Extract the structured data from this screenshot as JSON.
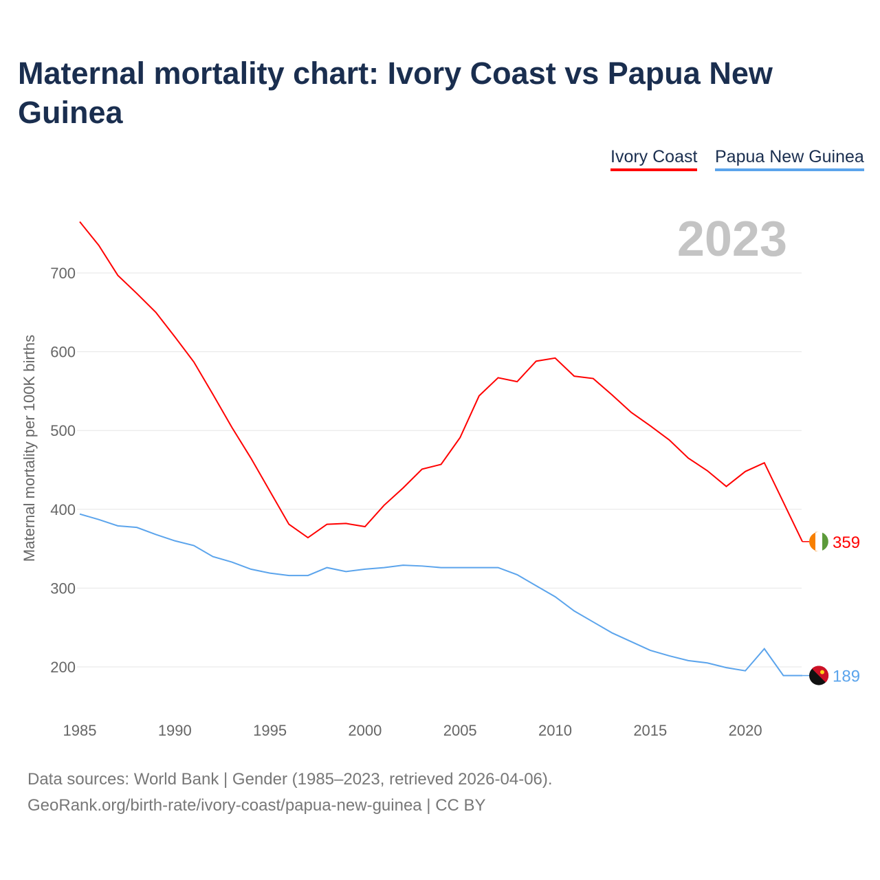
{
  "title": "Maternal mortality chart: Ivory Coast vs Papua New Guinea",
  "year_label": "2023",
  "footer": {
    "line1": "Data sources: World Bank | Gender (1985–2023, retrieved 2026-04-06).",
    "line2": "GeoRank.org/birth-rate/ivory-coast/papua-new-guinea | CC BY"
  },
  "chart_data": {
    "type": "line",
    "title": "Maternal mortality chart: Ivory Coast vs Papua New Guinea",
    "xlabel": "",
    "ylabel": "Maternal mortality per 100K births",
    "xlim": [
      1985,
      2023
    ],
    "ylim": [
      150,
      760
    ],
    "yticks": [
      200,
      300,
      400,
      500,
      600,
      700
    ],
    "xticks": [
      1985,
      1990,
      1995,
      2000,
      2005,
      2010,
      2015,
      2020
    ],
    "grid": true,
    "legend_position": "top-right",
    "x": [
      1985,
      1986,
      1987,
      1988,
      1989,
      1990,
      1991,
      1992,
      1993,
      1994,
      1995,
      1996,
      1997,
      1998,
      1999,
      2000,
      2001,
      2002,
      2003,
      2004,
      2005,
      2006,
      2007,
      2008,
      2009,
      2010,
      2011,
      2012,
      2013,
      2014,
      2015,
      2016,
      2017,
      2018,
      2019,
      2020,
      2021,
      2022,
      2023
    ],
    "series": [
      {
        "name": "Ivory Coast",
        "color": "#ff0000",
        "end_label": "359",
        "values": [
          765,
          735,
          697,
          674,
          650,
          619,
          587,
          546,
          504,
          465,
          423,
          381,
          364,
          381,
          382,
          378,
          405,
          427,
          451,
          457,
          491,
          544,
          567,
          562,
          588,
          592,
          569,
          566,
          545,
          523,
          506,
          488,
          465,
          449,
          429,
          448,
          459,
          409,
          359
        ]
      },
      {
        "name": "Papua New Guinea",
        "color": "#5ba4ec",
        "end_label": "189",
        "values": [
          394,
          387,
          379,
          377,
          368,
          360,
          354,
          340,
          333,
          324,
          319,
          316,
          316,
          326,
          321,
          324,
          326,
          329,
          328,
          326,
          326,
          326,
          326,
          317,
          303,
          289,
          271,
          257,
          243,
          232,
          221,
          214,
          208,
          205,
          199,
          195,
          223,
          189,
          189
        ]
      }
    ]
  }
}
